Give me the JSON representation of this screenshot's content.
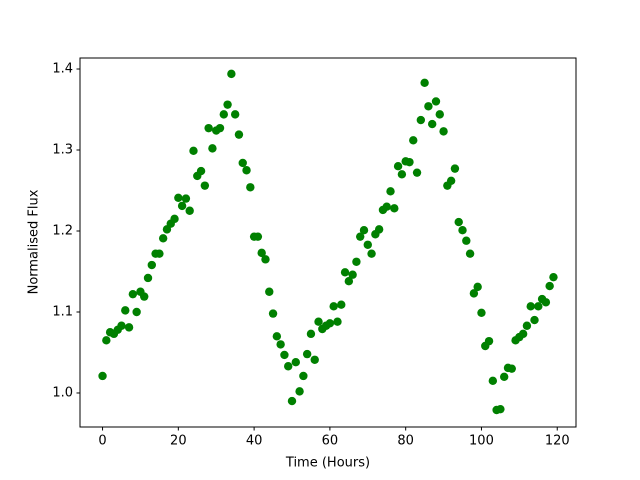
{
  "chart_data": {
    "type": "scatter",
    "xlabel": "Time (Hours)",
    "ylabel": "Normalised Flux",
    "x": [
      0,
      1,
      2,
      3,
      4,
      5,
      6,
      7,
      8,
      9,
      10,
      11,
      12,
      13,
      14,
      15,
      16,
      17,
      18,
      19,
      20,
      21,
      22,
      23,
      24,
      25,
      26,
      27,
      28,
      29,
      30,
      31,
      32,
      33,
      34,
      35,
      36,
      37,
      38,
      39,
      40,
      41,
      42,
      43,
      44,
      45,
      46,
      47,
      48,
      49,
      50,
      51,
      52,
      53,
      54,
      55,
      56,
      57,
      58,
      59,
      60,
      61,
      62,
      63,
      64,
      65,
      66,
      67,
      68,
      69,
      70,
      71,
      72,
      73,
      74,
      75,
      76,
      77,
      78,
      79,
      80,
      81,
      82,
      83,
      84,
      85,
      86,
      87,
      88,
      89,
      90,
      91,
      92,
      93,
      94,
      95,
      96,
      97,
      98,
      99,
      100,
      101,
      102,
      103,
      104,
      105,
      106,
      107,
      108,
      109,
      110,
      111,
      112,
      113,
      114,
      115,
      116,
      117,
      118,
      119
    ],
    "values": [
      1.021,
      1.065,
      1.075,
      1.073,
      1.078,
      1.083,
      1.102,
      1.081,
      1.122,
      1.1,
      1.125,
      1.119,
      1.142,
      1.158,
      1.172,
      1.172,
      1.191,
      1.202,
      1.209,
      1.215,
      1.241,
      1.231,
      1.24,
      1.225,
      1.299,
      1.268,
      1.274,
      1.256,
      1.327,
      1.302,
      1.324,
      1.327,
      1.344,
      1.356,
      1.394,
      1.344,
      1.319,
      1.284,
      1.275,
      1.254,
      1.193,
      1.193,
      1.173,
      1.165,
      1.125,
      1.098,
      1.07,
      1.06,
      1.047,
      1.033,
      0.99,
      1.038,
      1.002,
      1.021,
      1.048,
      1.073,
      1.041,
      1.088,
      1.079,
      1.083,
      1.086,
      1.107,
      1.088,
      1.109,
      1.149,
      1.138,
      1.146,
      1.162,
      1.193,
      1.201,
      1.183,
      1.172,
      1.196,
      1.202,
      1.226,
      1.23,
      1.249,
      1.228,
      1.28,
      1.27,
      1.286,
      1.285,
      1.312,
      1.272,
      1.337,
      1.383,
      1.354,
      1.332,
      1.36,
      1.344,
      1.323,
      1.256,
      1.262,
      1.277,
      1.211,
      1.201,
      1.188,
      1.172,
      1.123,
      1.131,
      1.099,
      1.058,
      1.064,
      1.015,
      0.979,
      0.98,
      1.02,
      1.031,
      1.03,
      1.065,
      1.069,
      1.073,
      1.083,
      1.107,
      1.09,
      1.107,
      1.116,
      1.112,
      1.132,
      1.143
    ],
    "color": "#008000",
    "xlim": [
      -5.95,
      124.95
    ],
    "xticks": [
      0,
      20,
      40,
      60,
      80,
      100,
      120
    ],
    "ylim": [
      0.958,
      1.4136
    ],
    "yticks": [
      {
        "value": 1,
        "label": "1.0"
      },
      1.1,
      1.2,
      1.3,
      1.4
    ]
  }
}
